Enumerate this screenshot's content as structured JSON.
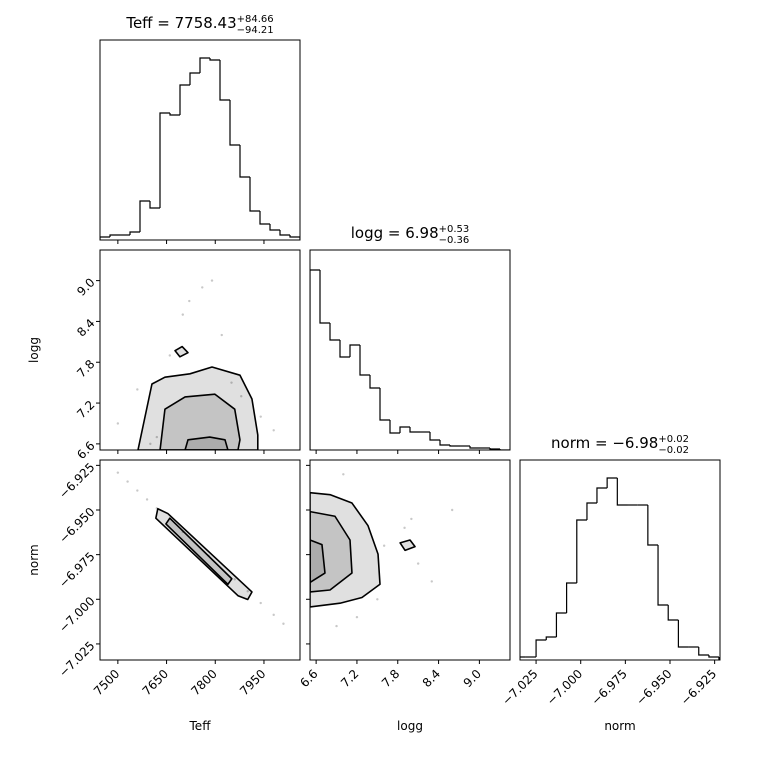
{
  "parameters": [
    {
      "label": "Teff",
      "lim": [
        7445,
        8061
      ],
      "ticks": [
        7500,
        7650,
        7800,
        7950
      ]
    },
    {
      "label": "logg",
      "lim": [
        6.51,
        9.45
      ],
      "ticks": [
        6.6,
        7.2,
        7.8,
        8.4,
        {
          "value": 9,
          "label": "9.0"
        }
      ]
    },
    {
      "label": "norm",
      "lim": [
        -7.034,
        -6.922
      ],
      "ticks": [
        {
          "value": -7.025,
          "label": "−7.025"
        },
        {
          "value": -7,
          "label": "−7.000"
        },
        {
          "value": -6.975,
          "label": "−6.975"
        },
        {
          "value": -6.95,
          "label": "−6.950"
        },
        {
          "value": -6.925,
          "label": "−6.925"
        }
      ]
    }
  ],
  "chart_data": [
    {
      "type": "histogram",
      "title": {
        "main": "Teff = 7758.43",
        "sup": "+84.66",
        "sub": "−94.21"
      },
      "ylim": [
        0,
        200
      ],
      "bins": [
        7445,
        7475.8,
        7506.6,
        7537.4,
        7568.2,
        7599,
        7629.8,
        7660.6,
        7691.4,
        7722.2,
        7753,
        7783.8,
        7814.6,
        7845.4,
        7876.2,
        7907,
        7937.8,
        7968.6,
        7999.4,
        8030.2,
        8061
      ],
      "values": [
        3,
        5,
        5,
        8,
        39,
        32,
        127,
        125,
        155,
        167,
        182,
        180,
        140,
        95,
        63,
        29,
        16,
        10,
        5,
        3
      ]
    },
    {
      "type": "histogram",
      "title": {
        "main": "logg = 6.98",
        "sup": "+0.53",
        "sub": "−0.36"
      },
      "ylim": [
        0,
        200
      ],
      "bins": [
        6.51,
        6.657,
        6.804,
        6.951,
        7.098,
        7.245,
        7.392,
        7.539,
        7.686,
        7.833,
        7.98,
        8.127,
        8.274,
        8.421,
        8.568,
        8.715,
        8.862,
        9.009,
        9.156,
        9.303,
        9.45
      ],
      "values": [
        180,
        127,
        110,
        93,
        105,
        75,
        62,
        30,
        17,
        23,
        18,
        18,
        10,
        5,
        4,
        4,
        2,
        2,
        1,
        0
      ]
    },
    {
      "type": "histogram",
      "title": {
        "main": "norm = −6.98",
        "sup": "+0.02",
        "sub": "−0.02"
      },
      "ylim": [
        0,
        200
      ],
      "bins": [
        -7.0364,
        -7.0307,
        -7.025,
        -7.0193,
        -7.0136,
        -7.0079,
        -7.0022,
        -6.9965,
        -6.9909,
        -6.9852,
        -6.9795,
        -6.9738,
        -6.9681,
        -6.9624,
        -6.9567,
        -6.951,
        -6.9453,
        -6.9396,
        -6.9339,
        -6.9282,
        -6.9226
      ],
      "values": [
        3,
        3,
        20,
        23,
        47,
        77,
        140,
        157,
        172,
        182,
        155,
        155,
        155,
        115,
        55,
        40,
        13,
        13,
        5,
        3
      ]
    },
    {
      "type": "contour",
      "points": {
        "x": [
          7500,
          7560,
          7620,
          7700,
          7760,
          7820,
          7880,
          7940,
          7980,
          7790,
          7660,
          7720,
          7850,
          7600
        ],
        "y": [
          6.9,
          7.4,
          6.7,
          8.5,
          8.9,
          8.2,
          7.3,
          7.0,
          6.8,
          9.0,
          7.9,
          8.7,
          7.5,
          6.6
        ]
      },
      "contours": [
        {
          "x": [
            7562,
            7605,
            7645,
            7722,
            7790,
            7876,
            7913,
            7931,
            7931
          ],
          "y": [
            6.51,
            7.48,
            7.58,
            7.63,
            7.73,
            7.61,
            7.26,
            6.73,
            6.51
          ]
        },
        {
          "x": [
            7630,
            7645,
            7707,
            7799,
            7860,
            7876,
            7870
          ],
          "y": [
            6.51,
            7.11,
            7.29,
            7.33,
            7.11,
            6.66,
            6.51
          ]
        },
        {
          "x": [
            7707,
            7716,
            7783,
            7830,
            7839
          ],
          "y": [
            6.51,
            6.66,
            6.7,
            6.66,
            6.51
          ]
        },
        {
          "x": [
            7676,
            7698,
            7716,
            7691
          ],
          "y": [
            7.97,
            8.03,
            7.94,
            7.88
          ]
        }
      ]
    },
    {
      "type": "contour",
      "points": {
        "x": [
          7500,
          7530,
          7560,
          7590,
          7860,
          7900,
          7940,
          7980,
          8010,
          7620,
          7700,
          7780
        ],
        "y": [
          -6.9291,
          -6.9341,
          -6.9391,
          -6.9441,
          -6.9888,
          -6.9955,
          -7.0021,
          -7.0087,
          -7.0137,
          -6.949,
          -6.9623,
          -6.9756
        ]
      },
      "contours": [
        {
          "x": [
            7623,
            7654,
            7913,
            7900,
            7870,
            7617
          ],
          "y": [
            -6.9493,
            -6.952,
            -6.9959,
            -7.0001,
            -6.998,
            -6.9546
          ]
        },
        {
          "x": [
            7660,
            7851,
            7839,
            7648
          ],
          "y": [
            -6.9546,
            -6.9885,
            -6.9916,
            -6.9578
          ]
        }
      ]
    },
    {
      "type": "contour",
      "points": {
        "x": [
          7.6,
          7.9,
          8.1,
          8.3,
          7.2,
          7.0,
          8.6,
          7.5,
          6.9,
          8.0
        ],
        "y": [
          -6.97,
          -6.96,
          -6.98,
          -6.99,
          -7.01,
          -6.93,
          -6.95,
          -7.0,
          -7.015,
          -6.955
        ]
      },
      "contours": [
        {
          "x": [
            6.51,
            6.804,
            7.127,
            7.363,
            7.51,
            7.539,
            7.274,
            6.951,
            6.51
          ],
          "y": [
            -6.9403,
            -6.9414,
            -6.9461,
            -6.9588,
            -6.9747,
            -6.9916,
            -6.999,
            -7.0022,
            -7.0043
          ]
        },
        {
          "x": [
            6.51,
            6.877,
            7.098,
            7.127,
            6.804,
            6.51
          ],
          "y": [
            -6.9509,
            -6.9535,
            -6.9668,
            -6.9853,
            -6.9948,
            -6.9959
          ]
        },
        {
          "x": [
            6.51,
            6.686,
            6.73,
            6.51
          ],
          "y": [
            -6.9668,
            -6.9694,
            -6.9853,
            -6.9906
          ]
        },
        {
          "x": [
            7.834,
            7.98,
            8.054,
            7.907
          ],
          "y": [
            -6.9684,
            -6.9668,
            -6.9705,
            -6.9726
          ]
        }
      ]
    }
  ]
}
